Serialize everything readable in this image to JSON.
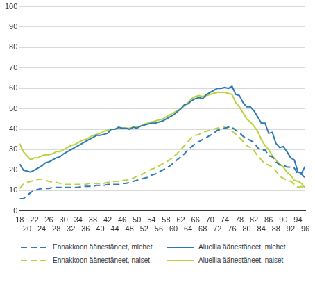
{
  "chart_data": {
    "type": "line",
    "x": [
      18,
      19,
      20,
      21,
      22,
      23,
      24,
      25,
      26,
      27,
      28,
      29,
      30,
      31,
      32,
      33,
      34,
      35,
      36,
      37,
      38,
      39,
      40,
      41,
      42,
      43,
      44,
      45,
      46,
      47,
      48,
      49,
      50,
      51,
      52,
      53,
      54,
      55,
      56,
      57,
      58,
      59,
      60,
      61,
      62,
      63,
      64,
      65,
      66,
      67,
      68,
      69,
      70,
      71,
      72,
      73,
      74,
      75,
      76,
      77,
      78,
      79,
      80,
      81,
      82,
      83,
      84,
      85,
      86,
      87,
      88,
      89,
      90,
      91,
      92,
      93,
      94,
      95,
      96
    ],
    "xlim": [
      18,
      96
    ],
    "xticks": [
      18,
      20,
      22,
      24,
      26,
      28,
      30,
      32,
      34,
      36,
      38,
      40,
      42,
      44,
      46,
      48,
      50,
      52,
      54,
      56,
      58,
      60,
      62,
      64,
      66,
      68,
      70,
      72,
      74,
      76,
      78,
      80,
      82,
      84,
      86,
      88,
      90,
      92,
      94,
      96
    ],
    "ylim": [
      0,
      100
    ],
    "yticks": [
      0,
      10,
      20,
      30,
      40,
      50,
      60,
      70,
      80,
      90,
      100
    ],
    "grid": true,
    "legend": "bottom",
    "series": [
      {
        "name": "Ennakkoon äänestäneet, miehet",
        "color": "#2b79b5",
        "line_style": "dashed",
        "values": [
          6,
          6,
          7.5,
          9,
          10,
          10.5,
          11,
          11,
          11,
          11.5,
          11.5,
          11.5,
          11.5,
          11.5,
          11.5,
          11.5,
          11.5,
          12,
          12,
          12,
          12,
          12.5,
          12.5,
          12.5,
          13,
          13,
          13,
          13,
          13.5,
          13.5,
          14,
          14.5,
          15,
          15.5,
          16,
          16.5,
          17.5,
          18,
          19,
          20,
          21,
          22,
          23.5,
          25,
          26.5,
          28,
          30,
          31.5,
          33,
          34,
          35,
          36,
          37,
          38,
          39.5,
          40,
          40.5,
          41,
          41,
          39.5,
          38.5,
          36.5,
          35.5,
          34.5,
          33.5,
          31,
          29.5,
          30,
          27,
          26.5,
          24,
          22.5,
          22.5,
          21.5,
          21.5,
          21,
          18,
          18,
          16
        ]
      },
      {
        "name": "Alueilla äänestäneet, miehet",
        "color": "#2b79b5",
        "line_style": "solid",
        "values": [
          23,
          20,
          19.5,
          19,
          20,
          21,
          22,
          23.5,
          24,
          25,
          26,
          26.5,
          28,
          29,
          30,
          31,
          32,
          33,
          34,
          35,
          36,
          37,
          37,
          37.5,
          38,
          40,
          40,
          41,
          40.5,
          40.5,
          40,
          41,
          40.5,
          41.5,
          42,
          42.5,
          43,
          43,
          43.5,
          44,
          45,
          46,
          47,
          48.5,
          50,
          52,
          52.5,
          54,
          55,
          55.5,
          55,
          57,
          58,
          59,
          60,
          60,
          60.5,
          60,
          61,
          57,
          56.5,
          53,
          51,
          51,
          49,
          46,
          43,
          43,
          38,
          38.5,
          33,
          31,
          31.5,
          29,
          26,
          25,
          19,
          18.5,
          22
        ]
      },
      {
        "name": "Ennakkoon äänestäneet, naiset",
        "color": "#b9d23a",
        "line_style": "dashed",
        "values": [
          11,
          13,
          14,
          14.5,
          15,
          15.5,
          15.5,
          15,
          14.5,
          14,
          14,
          13.5,
          13,
          13,
          13,
          13,
          13,
          13,
          13,
          13.5,
          13.5,
          13.5,
          13.5,
          13.5,
          14,
          14,
          14.5,
          14.5,
          15,
          15,
          15.5,
          16,
          17,
          17.5,
          18.5,
          19.5,
          20.5,
          21,
          22,
          23,
          24,
          25,
          26.5,
          28,
          30,
          32,
          34,
          36,
          37,
          37.5,
          38.5,
          39,
          39.5,
          40,
          40.5,
          41,
          41,
          40,
          39,
          37.5,
          36,
          34,
          32,
          31,
          29.5,
          27,
          25,
          23,
          22.5,
          21.5,
          19.5,
          17,
          16,
          15,
          14.5,
          13,
          11.5,
          12,
          10
        ]
      },
      {
        "name": "Alueilla äänestäneet, naiset",
        "color": "#b9d23a",
        "line_style": "solid",
        "values": [
          33,
          29,
          27,
          25,
          26,
          26,
          27,
          27.5,
          27.5,
          28,
          29,
          29,
          30,
          31,
          32,
          32.5,
          33.5,
          34.5,
          35,
          36,
          37,
          37.5,
          38,
          39,
          39.5,
          40,
          40,
          40.5,
          40.5,
          40.5,
          40.5,
          41,
          41,
          41.5,
          42.5,
          43,
          43.5,
          44,
          44.5,
          45,
          46,
          47,
          48,
          49,
          50,
          51.5,
          53,
          55,
          56,
          56.5,
          56,
          56.5,
          57,
          57.5,
          58,
          58,
          58,
          57.5,
          57,
          53,
          51,
          48,
          45,
          43.5,
          41.5,
          39,
          35,
          32,
          30,
          27,
          25,
          23,
          21.5,
          19,
          17.5,
          15,
          14.5,
          13.5,
          11
        ]
      }
    ]
  }
}
